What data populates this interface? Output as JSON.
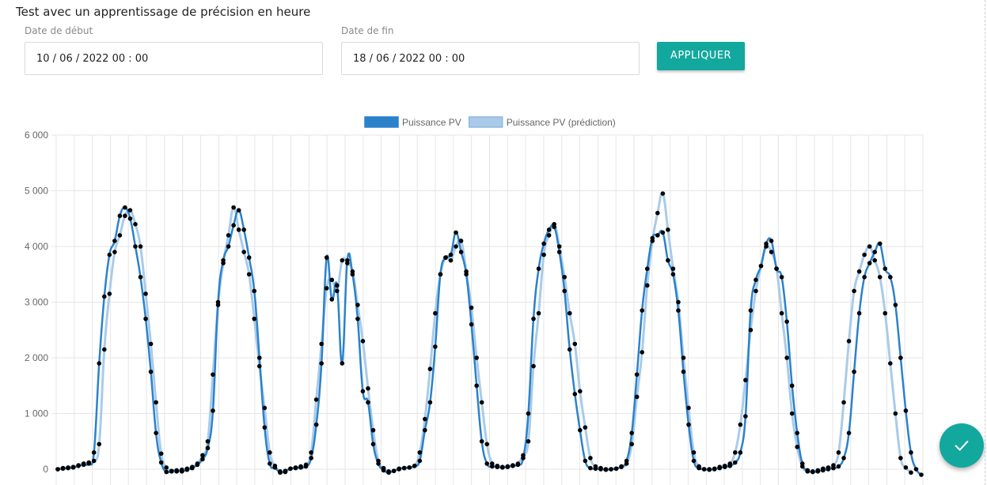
{
  "page": {
    "title": "Test avec un apprentissage de précision en heure"
  },
  "filters": {
    "start_label": "Date de début",
    "start_value": "10 / 06 / 2022   00 : 00",
    "end_label": "Date de fin",
    "end_value": "18 / 06 / 2022   00 : 00",
    "apply_label": "APPLIQUER"
  },
  "fab": {
    "icon": "check-icon"
  },
  "colors": {
    "accent": "#13a89e",
    "series_actual": "#2b82cb",
    "series_pred": "#a9cbe9",
    "points": "#000000"
  },
  "chart_data": {
    "type": "line",
    "legend_position": "top",
    "grid": true,
    "ylim": [
      0,
      6000
    ],
    "yticks": [
      "0",
      "1 000",
      "2 000",
      "3 000",
      "4 000",
      "5 000",
      "6 000"
    ],
    "series": [
      {
        "name": "Puissance PV",
        "values": [
          0,
          10,
          20,
          30,
          60,
          80,
          100,
          300,
          1900,
          3100,
          3850,
          4100,
          4550,
          4700,
          4500,
          4000,
          3450,
          2700,
          1750,
          650,
          120,
          -50,
          -30,
          -20,
          -40,
          -10,
          20,
          80,
          180,
          380,
          1050,
          3000,
          3750,
          4000,
          4380,
          4650,
          4300,
          3800,
          3200,
          2000,
          750,
          100,
          30,
          -60,
          -30,
          10,
          20,
          30,
          50,
          200,
          800,
          1900,
          3800,
          3050,
          3300,
          1900,
          3750,
          3500,
          2700,
          1400,
          1200,
          450,
          100,
          -20,
          -60,
          -30,
          10,
          20,
          30,
          60,
          150,
          700,
          1200,
          2200,
          3500,
          3800,
          3850,
          4250,
          3900,
          3500,
          2600,
          1500,
          500,
          100,
          50,
          40,
          30,
          40,
          60,
          80,
          200,
          1000,
          2700,
          3600,
          4050,
          4300,
          4350,
          3900,
          3200,
          2150,
          1350,
          700,
          150,
          20,
          10,
          0,
          -10,
          0,
          10,
          50,
          150,
          650,
          1700,
          2850,
          3600,
          4150,
          4200,
          4250,
          3750,
          3500,
          2850,
          1750,
          800,
          150,
          20,
          0,
          -10,
          0,
          20,
          40,
          60,
          120,
          300,
          950,
          2850,
          3400,
          3650,
          4050,
          4100,
          3600,
          3450,
          2650,
          1500,
          650,
          100,
          -20,
          -50,
          -40,
          -20,
          0,
          20,
          50,
          200,
          650,
          1750,
          2800,
          3450,
          3700,
          3900,
          4050,
          3600,
          3450,
          2950,
          2000,
          1050,
          300,
          0,
          -100
        ]
      },
      {
        "name": "Puissance PV (prédiction)",
        "values": [
          0,
          20,
          30,
          40,
          70,
          100,
          120,
          150,
          450,
          2150,
          3150,
          3900,
          4200,
          4550,
          4650,
          4400,
          4000,
          3150,
          2250,
          1200,
          280,
          30,
          -40,
          -40,
          -10,
          10,
          40,
          100,
          250,
          500,
          1700,
          2950,
          3700,
          4200,
          4700,
          4300,
          3900,
          3500,
          2700,
          1850,
          1100,
          300,
          60,
          -40,
          -50,
          10,
          30,
          50,
          80,
          300,
          1250,
          2250,
          3250,
          3400,
          3200,
          3750,
          3700,
          3550,
          2950,
          2300,
          1450,
          700,
          150,
          20,
          -40,
          -30,
          0,
          20,
          30,
          60,
          300,
          900,
          1800,
          2800,
          3500,
          3800,
          3750,
          4000,
          4100,
          3550,
          2900,
          2000,
          1200,
          450,
          100,
          60,
          40,
          50,
          70,
          100,
          250,
          500,
          1850,
          2800,
          3850,
          4200,
          4400,
          4000,
          3450,
          2800,
          2250,
          1400,
          750,
          200,
          50,
          20,
          0,
          0,
          10,
          40,
          100,
          450,
          1300,
          2100,
          3300,
          4100,
          4600,
          4950,
          4300,
          3600,
          3000,
          2000,
          1100,
          300,
          50,
          0,
          0,
          10,
          40,
          60,
          100,
          300,
          800,
          1600,
          2500,
          3200,
          3650,
          4000,
          3900,
          3600,
          2800,
          2000,
          1000,
          400,
          50,
          -40,
          -40,
          -20,
          10,
          30,
          70,
          300,
          1200,
          2300,
          3200,
          3550,
          3850,
          4000,
          3750,
          3450,
          2800,
          1900,
          1000,
          200,
          30,
          -60
        ]
      }
    ]
  }
}
